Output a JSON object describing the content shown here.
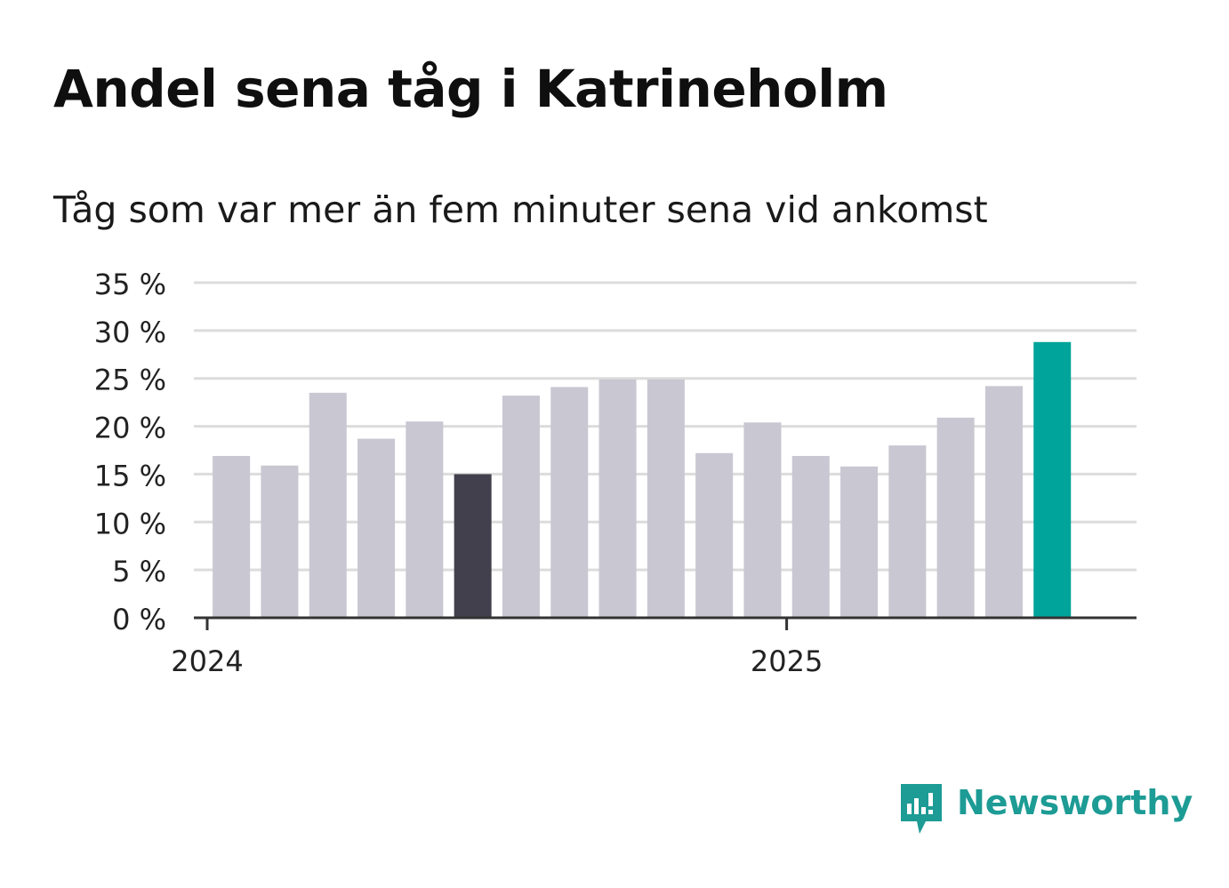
{
  "title": "Andel sena tåg i Katrineholm",
  "subtitle": "Tåg som var mer än fem minuter sena vid ankomst",
  "brand": {
    "name": "Newsworthy",
    "color": "#1d9b95",
    "icon": "newsworthy-logo-icon"
  },
  "colors": {
    "default_bar": "#c8c7d2",
    "highlight_dark": "#41404c",
    "highlight_latest": "#00a49a",
    "grid": "#dcdcdc",
    "axis": "#333333"
  },
  "chart_data": {
    "type": "bar",
    "title": "Andel sena tåg i Katrineholm",
    "subtitle": "Tåg som var mer än fem minuter sena vid ankomst",
    "xlabel": "",
    "ylabel": "",
    "ylim": [
      0,
      35
    ],
    "yticks": [
      0,
      5,
      10,
      15,
      20,
      25,
      30,
      35
    ],
    "ytick_labels": [
      "0 %",
      "5 %",
      "10 %",
      "15 %",
      "20 %",
      "25 %",
      "30 %",
      "35 %"
    ],
    "xtick_labels": [
      {
        "label": "2024",
        "at_month": 0
      },
      {
        "label": "2025",
        "at_month": 12
      }
    ],
    "grid": true,
    "values": [
      {
        "month": 1,
        "value": 16.9,
        "style": "default"
      },
      {
        "month": 2,
        "value": 15.9,
        "style": "default"
      },
      {
        "month": 3,
        "value": 23.5,
        "style": "default"
      },
      {
        "month": 4,
        "value": 18.7,
        "style": "default"
      },
      {
        "month": 5,
        "value": 20.5,
        "style": "default"
      },
      {
        "month": 6,
        "value": 15.0,
        "style": "highlight_dark"
      },
      {
        "month": 7,
        "value": 23.2,
        "style": "default"
      },
      {
        "month": 8,
        "value": 24.1,
        "style": "default"
      },
      {
        "month": 9,
        "value": 24.9,
        "style": "default"
      },
      {
        "month": 10,
        "value": 24.9,
        "style": "default"
      },
      {
        "month": 11,
        "value": 17.2,
        "style": "default"
      },
      {
        "month": 12,
        "value": 20.4,
        "style": "default"
      },
      {
        "month": 13,
        "value": 16.9,
        "style": "default"
      },
      {
        "month": 14,
        "value": 15.8,
        "style": "default"
      },
      {
        "month": 15,
        "value": 18.0,
        "style": "default"
      },
      {
        "month": 16,
        "value": 20.9,
        "style": "default"
      },
      {
        "month": 17,
        "value": 24.2,
        "style": "default"
      },
      {
        "month": 18,
        "value": 28.8,
        "style": "highlight_latest"
      }
    ]
  }
}
